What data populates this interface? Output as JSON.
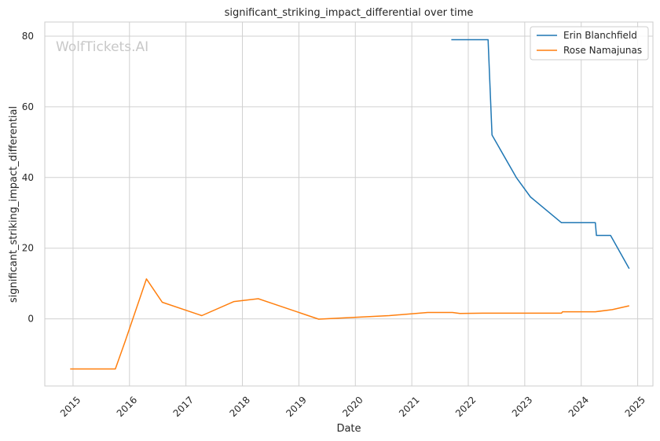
{
  "chart_data": {
    "type": "line",
    "title": "significant_striking_impact_differential over time",
    "xlabel": "Date",
    "ylabel": "significant_striking_impact_differential",
    "watermark": "WolfTickets.AI",
    "x_ticks": [
      "2015",
      "2016",
      "2017",
      "2018",
      "2019",
      "2020",
      "2021",
      "2022",
      "2023",
      "2024",
      "2025"
    ],
    "y_ticks": [
      "0",
      "20",
      "40",
      "60",
      "80"
    ],
    "xlim": [
      2014.5,
      2025.27
    ],
    "ylim": [
      -19,
      84
    ],
    "grid": true,
    "legend_position": "top-right",
    "series": [
      {
        "name": "Erin Blanchfield",
        "color": "#1f77b4",
        "points": [
          [
            2021.7,
            79
          ],
          [
            2022.35,
            79
          ],
          [
            2022.42,
            52
          ],
          [
            2022.85,
            40
          ],
          [
            2023.1,
            34.5
          ],
          [
            2023.65,
            27.2
          ],
          [
            2024.25,
            27.2
          ],
          [
            2024.27,
            23.6
          ],
          [
            2024.52,
            23.6
          ],
          [
            2024.85,
            14.2
          ]
        ]
      },
      {
        "name": "Rose Namajunas",
        "color": "#ff7f0e",
        "points": [
          [
            2014.95,
            -14.2
          ],
          [
            2015.75,
            -14.2
          ],
          [
            2015.92,
            -6.5
          ],
          [
            2016.3,
            11.3
          ],
          [
            2016.58,
            4.7
          ],
          [
            2017.28,
            0.9
          ],
          [
            2017.85,
            4.9
          ],
          [
            2018.28,
            5.7
          ],
          [
            2019.35,
            -0.1
          ],
          [
            2020.6,
            0.9
          ],
          [
            2021.28,
            1.8
          ],
          [
            2021.72,
            1.8
          ],
          [
            2021.85,
            1.5
          ],
          [
            2022.25,
            1.6
          ],
          [
            2023.65,
            1.6
          ],
          [
            2023.67,
            2.0
          ],
          [
            2024.25,
            2.0
          ],
          [
            2024.55,
            2.6
          ],
          [
            2024.85,
            3.7
          ]
        ]
      }
    ]
  }
}
